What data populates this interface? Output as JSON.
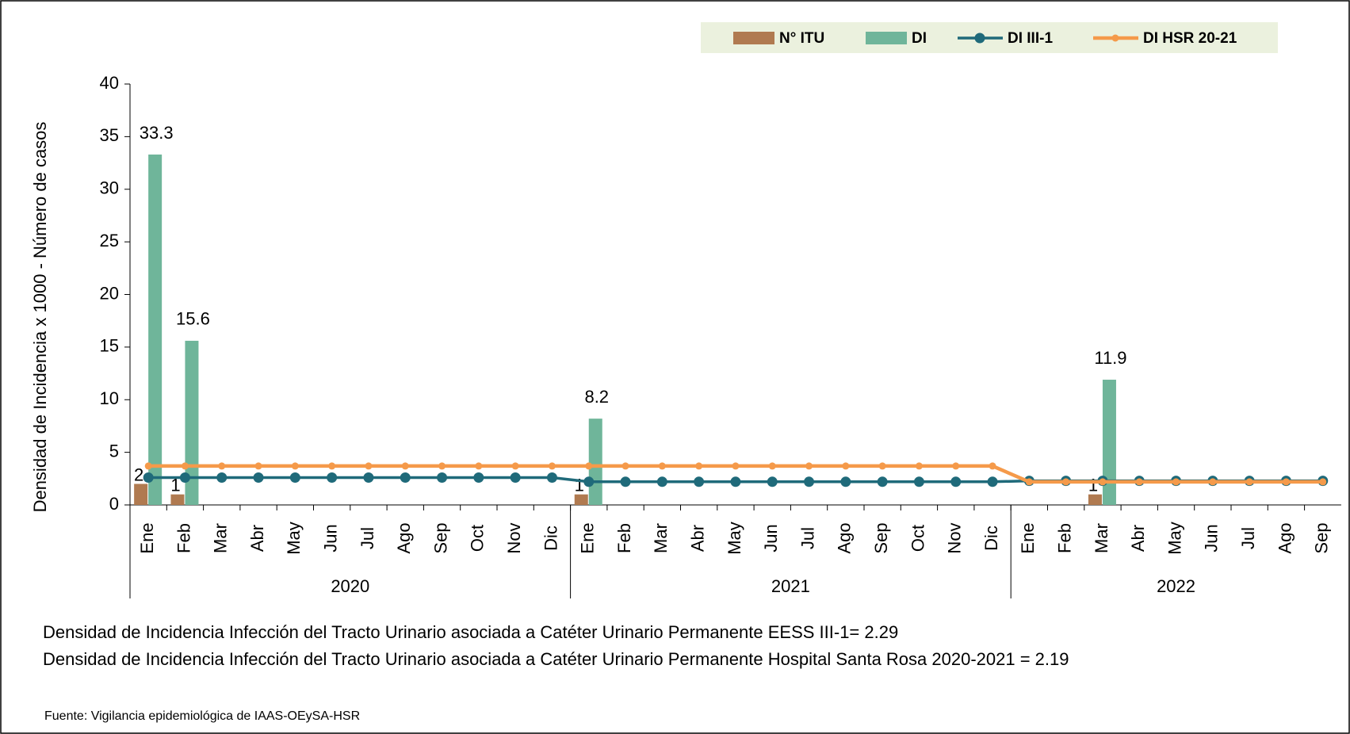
{
  "chart_data": {
    "type": "bar",
    "y_label": "Densidad de Incidencia x 1000  - Número de casos",
    "categories": [
      "Ene",
      "Feb",
      "Mar",
      "Abr",
      "May",
      "Jun",
      "Jul",
      "Ago",
      "Sep",
      "Oct",
      "Nov",
      "Dic",
      "Ene",
      "Feb",
      "Mar",
      "Abr",
      "May",
      "Jun",
      "Jul",
      "Ago",
      "Sep",
      "Oct",
      "Nov",
      "Dic",
      "Ene",
      "Feb",
      "Mar",
      "Abr",
      "May",
      "Jun",
      "Jul",
      "Ago",
      "Sep"
    ],
    "x_groups": [
      {
        "label": "2020",
        "size": 12
      },
      {
        "label": "2021",
        "size": 12
      },
      {
        "label": "2022",
        "size": 9
      }
    ],
    "series": [
      {
        "name": "N° ITU",
        "type": "bar",
        "color": "#b07a50",
        "values": [
          2,
          1,
          null,
          null,
          null,
          null,
          null,
          null,
          null,
          null,
          null,
          null,
          1,
          null,
          null,
          null,
          null,
          null,
          null,
          null,
          null,
          null,
          null,
          null,
          null,
          null,
          1,
          null,
          null,
          null,
          null,
          null,
          null
        ]
      },
      {
        "name": "DI",
        "type": "bar",
        "color": "#6fb59a",
        "values": [
          33.3,
          15.6,
          null,
          null,
          null,
          null,
          null,
          null,
          null,
          null,
          null,
          null,
          8.2,
          null,
          null,
          null,
          null,
          null,
          null,
          null,
          null,
          null,
          null,
          null,
          null,
          null,
          11.9,
          null,
          null,
          null,
          null,
          null,
          null
        ]
      },
      {
        "name": "DI III-1",
        "type": "line",
        "color": "#1f6a7a",
        "values": [
          2.6,
          2.6,
          2.6,
          2.6,
          2.6,
          2.6,
          2.6,
          2.6,
          2.6,
          2.6,
          2.6,
          2.6,
          2.2,
          2.2,
          2.2,
          2.2,
          2.2,
          2.2,
          2.2,
          2.2,
          2.2,
          2.2,
          2.2,
          2.2,
          2.29,
          2.29,
          2.29,
          2.29,
          2.29,
          2.29,
          2.29,
          2.29,
          2.29
        ]
      },
      {
        "name": "DI HSR 20-21",
        "type": "line",
        "color": "#f59a4a",
        "values": [
          3.7,
          3.7,
          3.7,
          3.7,
          3.7,
          3.7,
          3.7,
          3.7,
          3.7,
          3.7,
          3.7,
          3.7,
          3.7,
          3.7,
          3.7,
          3.7,
          3.7,
          3.7,
          3.7,
          3.7,
          3.7,
          3.7,
          3.7,
          3.7,
          2.19,
          2.19,
          2.19,
          2.19,
          2.19,
          2.19,
          2.19,
          2.19,
          2.19
        ]
      }
    ],
    "ylim": [
      0,
      40
    ],
    "yticks": [
      0,
      5,
      10,
      15,
      20,
      25,
      30,
      35,
      40
    ],
    "legend": "top-right",
    "notes": [
      "Densidad de Incidencia Infección del  Tracto Urinario asociada a  Catéter Urinario Permanente  EESS III-1= 2.29",
      "Densidad de Incidencia Infección del  Tracto Urinario asociada a  Catéter Urinario Permanente  Hospital Santa Rosa 2020-2021  = 2.19"
    ],
    "source": "Fuente: Vigilancia epidemiológica de IAAS-OEySA-HSR"
  }
}
